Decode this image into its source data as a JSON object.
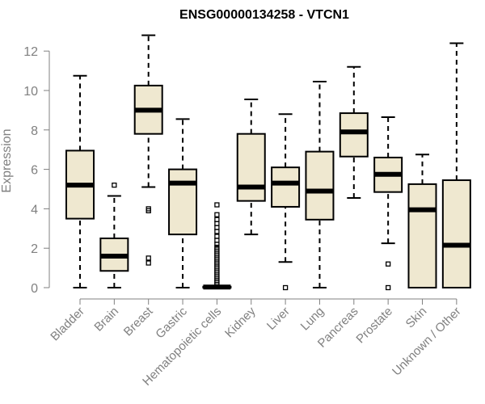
{
  "chart_data": {
    "type": "boxplot",
    "title": "ENSG00000134258 - VTCN1",
    "xlabel": "",
    "ylabel": "Expression",
    "ylim": [
      0,
      13
    ],
    "yticks": [
      0,
      2,
      4,
      6,
      8,
      10,
      12
    ],
    "box_fill": "#efe8d0",
    "categories": [
      "Bladder",
      "Brain",
      "Breast",
      "Gastric",
      "Hematopoietic cells",
      "Kidney",
      "Liver",
      "Lung",
      "Pancreas",
      "Prostate",
      "Skin",
      "Unknown / Other"
    ],
    "boxes": [
      {
        "min": 0,
        "q1": 3.5,
        "median": 5.2,
        "q3": 6.95,
        "max": 10.75,
        "outliers": []
      },
      {
        "min": 0,
        "q1": 0.85,
        "median": 1.6,
        "q3": 2.5,
        "max": 4.65,
        "outliers": [
          5.2
        ]
      },
      {
        "min": 5.1,
        "q1": 7.8,
        "median": 9.0,
        "q3": 10.25,
        "max": 12.8,
        "outliers": [
          4.0,
          3.9,
          1.5,
          1.25
        ]
      },
      {
        "min": 0,
        "q1": 2.7,
        "median": 5.3,
        "q3": 6.0,
        "max": 8.55,
        "outliers": []
      },
      {
        "min": 0,
        "q1": 0,
        "median": 0.03,
        "q3": 0.05,
        "max": 0.1,
        "outliers": [
          0.15,
          0.25,
          0.35,
          0.45,
          0.55,
          0.65,
          0.75,
          0.85,
          0.95,
          1.05,
          1.15,
          1.25,
          1.35,
          1.45,
          1.55,
          1.65,
          1.75,
          1.85,
          1.95,
          2.05,
          2.2,
          2.4,
          2.6,
          2.85,
          3.05,
          3.25,
          3.45,
          3.7,
          4.2
        ]
      },
      {
        "min": 2.7,
        "q1": 4.4,
        "median": 5.1,
        "q3": 7.8,
        "max": 9.55,
        "outliers": []
      },
      {
        "min": 1.3,
        "q1": 4.1,
        "median": 5.3,
        "q3": 6.1,
        "max": 8.8,
        "outliers": [
          0
        ]
      },
      {
        "min": 0,
        "q1": 3.45,
        "median": 4.9,
        "q3": 6.9,
        "max": 10.45,
        "outliers": []
      },
      {
        "min": 4.55,
        "q1": 6.65,
        "median": 7.9,
        "q3": 8.85,
        "max": 11.2,
        "outliers": []
      },
      {
        "min": 2.25,
        "q1": 4.85,
        "median": 5.75,
        "q3": 6.6,
        "max": 8.65,
        "outliers": [
          1.2,
          0
        ]
      },
      {
        "min": 0,
        "q1": 0,
        "median": 3.95,
        "q3": 5.25,
        "max": 6.75,
        "outliers": []
      },
      {
        "min": 0,
        "q1": 0,
        "median": 2.15,
        "q3": 5.45,
        "max": 12.4,
        "outliers": []
      }
    ]
  }
}
